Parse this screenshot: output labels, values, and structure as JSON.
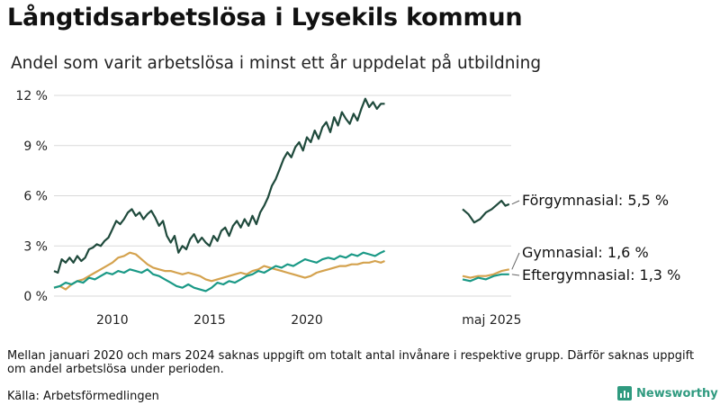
{
  "header": {
    "title": "Långtidsarbetslösa i Lysekils kommun",
    "subtitle": "Andel som varit arbetslösa i minst ett år uppdelat på utbildning"
  },
  "footer": {
    "note": "Mellan januari 2020 och mars 2024 saknas uppgift om totalt antal invånare i respektive grupp. Därför saknas uppgift om andel arbetslösa under perioden.",
    "source": "Källa: Arbetsförmedlingen",
    "brand": "Newsworthy"
  },
  "colors": {
    "forgymnasial": "#1f4a3c",
    "gymnasial": "#d4a24e",
    "eftergymnasial": "#1a9986",
    "grid": "#d9d9d9",
    "brand": "#2f9a7f"
  },
  "chart_data": {
    "type": "line",
    "ylim": [
      0,
      12
    ],
    "y_ticks": [
      0,
      3,
      6,
      9,
      12
    ],
    "y_tick_labels": [
      "0 %",
      "3 %",
      "6 %",
      "9 %",
      "12 %"
    ],
    "x_tick_labels": [
      "2010",
      "2015",
      "2020",
      "maj 2025"
    ],
    "grid": true,
    "series": [
      {
        "name": "Förgymnasial",
        "end_label": "Förgymnasial: 5,5 %",
        "color_key": "forgymnasial",
        "segments": [
          [
            [
              2008.0,
              1.5
            ],
            [
              2008.2,
              1.4
            ],
            [
              2008.4,
              2.2
            ],
            [
              2008.6,
              2.0
            ],
            [
              2008.8,
              2.3
            ],
            [
              2009.0,
              2.0
            ],
            [
              2009.2,
              2.4
            ],
            [
              2009.4,
              2.1
            ],
            [
              2009.6,
              2.3
            ],
            [
              2009.8,
              2.8
            ],
            [
              2010.0,
              2.9
            ],
            [
              2010.2,
              3.1
            ],
            [
              2010.4,
              3.0
            ],
            [
              2010.6,
              3.3
            ],
            [
              2010.8,
              3.5
            ],
            [
              2011.0,
              4.0
            ],
            [
              2011.2,
              4.5
            ],
            [
              2011.4,
              4.3
            ],
            [
              2011.6,
              4.6
            ],
            [
              2011.8,
              5.0
            ],
            [
              2012.0,
              5.2
            ],
            [
              2012.2,
              4.8
            ],
            [
              2012.4,
              5.0
            ],
            [
              2012.6,
              4.6
            ],
            [
              2012.8,
              4.9
            ],
            [
              2013.0,
              5.1
            ],
            [
              2013.2,
              4.7
            ],
            [
              2013.4,
              4.2
            ],
            [
              2013.6,
              4.5
            ],
            [
              2013.8,
              3.6
            ],
            [
              2014.0,
              3.2
            ],
            [
              2014.2,
              3.6
            ],
            [
              2014.4,
              2.6
            ],
            [
              2014.6,
              3.0
            ],
            [
              2014.8,
              2.8
            ],
            [
              2015.0,
              3.4
            ],
            [
              2015.2,
              3.7
            ],
            [
              2015.4,
              3.2
            ],
            [
              2015.6,
              3.5
            ],
            [
              2015.8,
              3.2
            ],
            [
              2016.0,
              3.0
            ],
            [
              2016.2,
              3.6
            ],
            [
              2016.4,
              3.3
            ],
            [
              2016.6,
              3.9
            ],
            [
              2016.8,
              4.1
            ],
            [
              2017.0,
              3.6
            ],
            [
              2017.2,
              4.2
            ],
            [
              2017.4,
              4.5
            ],
            [
              2017.6,
              4.1
            ],
            [
              2017.8,
              4.6
            ],
            [
              2018.0,
              4.2
            ],
            [
              2018.2,
              4.8
            ],
            [
              2018.4,
              4.3
            ],
            [
              2018.6,
              5.0
            ],
            [
              2018.8,
              5.4
            ],
            [
              2019.0,
              5.9
            ],
            [
              2019.2,
              6.6
            ],
            [
              2019.4,
              7.0
            ],
            [
              2019.6,
              7.6
            ],
            [
              2019.8,
              8.2
            ],
            [
              2020.0,
              8.6
            ],
            [
              2020.2,
              8.3
            ],
            [
              2020.4,
              8.9
            ],
            [
              2020.6,
              9.2
            ],
            [
              2020.8,
              8.7
            ],
            [
              2021.0,
              9.5
            ],
            [
              2021.2,
              9.2
            ],
            [
              2021.4,
              9.9
            ],
            [
              2021.6,
              9.4
            ],
            [
              2021.8,
              10.1
            ],
            [
              2022.0,
              10.4
            ],
            [
              2022.2,
              9.8
            ],
            [
              2022.4,
              10.7
            ],
            [
              2022.6,
              10.2
            ],
            [
              2022.8,
              11.0
            ],
            [
              2023.0,
              10.6
            ],
            [
              2023.2,
              10.3
            ],
            [
              2023.4,
              10.9
            ],
            [
              2023.6,
              10.5
            ],
            [
              2023.8,
              11.2
            ],
            [
              2024.0,
              11.8
            ],
            [
              2024.2,
              11.3
            ],
            [
              2024.4,
              11.6
            ],
            [
              2024.6,
              11.2
            ],
            [
              2024.8,
              11.5
            ],
            [
              2025.0,
              11.5
            ]
          ],
          [
            [
              2029.0,
              5.2
            ],
            [
              2029.3,
              4.9
            ],
            [
              2029.6,
              4.4
            ],
            [
              2029.9,
              4.6
            ],
            [
              2030.2,
              5.0
            ],
            [
              2030.5,
              5.2
            ],
            [
              2030.8,
              5.5
            ],
            [
              2031.0,
              5.7
            ],
            [
              2031.2,
              5.4
            ],
            [
              2031.4,
              5.5
            ]
          ]
        ]
      },
      {
        "name": "Gymnasial",
        "end_label": "Gymnasial: 1,6 %",
        "color_key": "gymnasial",
        "segments": [
          [
            [
              2008.0,
              0.5
            ],
            [
              2008.3,
              0.6
            ],
            [
              2008.6,
              0.4
            ],
            [
              2008.9,
              0.7
            ],
            [
              2009.2,
              0.9
            ],
            [
              2009.5,
              1.0
            ],
            [
              2009.8,
              1.2
            ],
            [
              2010.1,
              1.4
            ],
            [
              2010.4,
              1.6
            ],
            [
              2010.7,
              1.8
            ],
            [
              2011.0,
              2.0
            ],
            [
              2011.3,
              2.3
            ],
            [
              2011.6,
              2.4
            ],
            [
              2011.9,
              2.6
            ],
            [
              2012.2,
              2.5
            ],
            [
              2012.5,
              2.2
            ],
            [
              2012.8,
              1.9
            ],
            [
              2013.1,
              1.7
            ],
            [
              2013.4,
              1.6
            ],
            [
              2013.7,
              1.5
            ],
            [
              2014.0,
              1.5
            ],
            [
              2014.3,
              1.4
            ],
            [
              2014.6,
              1.3
            ],
            [
              2014.9,
              1.4
            ],
            [
              2015.2,
              1.3
            ],
            [
              2015.5,
              1.2
            ],
            [
              2015.8,
              1.0
            ],
            [
              2016.1,
              0.9
            ],
            [
              2016.4,
              1.0
            ],
            [
              2016.7,
              1.1
            ],
            [
              2017.0,
              1.2
            ],
            [
              2017.3,
              1.3
            ],
            [
              2017.6,
              1.4
            ],
            [
              2017.9,
              1.3
            ],
            [
              2018.2,
              1.5
            ],
            [
              2018.5,
              1.6
            ],
            [
              2018.8,
              1.8
            ],
            [
              2019.1,
              1.7
            ],
            [
              2019.4,
              1.6
            ],
            [
              2019.7,
              1.5
            ],
            [
              2020.0,
              1.4
            ],
            [
              2020.3,
              1.3
            ],
            [
              2020.6,
              1.2
            ],
            [
              2020.9,
              1.1
            ],
            [
              2021.2,
              1.2
            ],
            [
              2021.5,
              1.4
            ],
            [
              2021.8,
              1.5
            ],
            [
              2022.1,
              1.6
            ],
            [
              2022.4,
              1.7
            ],
            [
              2022.7,
              1.8
            ],
            [
              2023.0,
              1.8
            ],
            [
              2023.3,
              1.9
            ],
            [
              2023.6,
              1.9
            ],
            [
              2023.9,
              2.0
            ],
            [
              2024.2,
              2.0
            ],
            [
              2024.5,
              2.1
            ],
            [
              2024.8,
              2.0
            ],
            [
              2025.0,
              2.1
            ]
          ],
          [
            [
              2029.0,
              1.2
            ],
            [
              2029.4,
              1.1
            ],
            [
              2029.8,
              1.2
            ],
            [
              2030.2,
              1.2
            ],
            [
              2030.6,
              1.3
            ],
            [
              2031.0,
              1.5
            ],
            [
              2031.4,
              1.6
            ]
          ]
        ]
      },
      {
        "name": "Eftergymnasial",
        "end_label": "Eftergymnasial: 1,3 %",
        "color_key": "eftergymnasial",
        "segments": [
          [
            [
              2008.0,
              0.5
            ],
            [
              2008.3,
              0.6
            ],
            [
              2008.6,
              0.8
            ],
            [
              2008.9,
              0.7
            ],
            [
              2009.2,
              0.9
            ],
            [
              2009.5,
              0.8
            ],
            [
              2009.8,
              1.1
            ],
            [
              2010.1,
              1.0
            ],
            [
              2010.4,
              1.2
            ],
            [
              2010.7,
              1.4
            ],
            [
              2011.0,
              1.3
            ],
            [
              2011.3,
              1.5
            ],
            [
              2011.6,
              1.4
            ],
            [
              2011.9,
              1.6
            ],
            [
              2012.2,
              1.5
            ],
            [
              2012.5,
              1.4
            ],
            [
              2012.8,
              1.6
            ],
            [
              2013.1,
              1.3
            ],
            [
              2013.4,
              1.2
            ],
            [
              2013.7,
              1.0
            ],
            [
              2014.0,
              0.8
            ],
            [
              2014.3,
              0.6
            ],
            [
              2014.6,
              0.5
            ],
            [
              2014.9,
              0.7
            ],
            [
              2015.2,
              0.5
            ],
            [
              2015.5,
              0.4
            ],
            [
              2015.8,
              0.3
            ],
            [
              2016.1,
              0.5
            ],
            [
              2016.4,
              0.8
            ],
            [
              2016.7,
              0.7
            ],
            [
              2017.0,
              0.9
            ],
            [
              2017.3,
              0.8
            ],
            [
              2017.6,
              1.0
            ],
            [
              2017.9,
              1.2
            ],
            [
              2018.2,
              1.3
            ],
            [
              2018.5,
              1.5
            ],
            [
              2018.8,
              1.4
            ],
            [
              2019.1,
              1.6
            ],
            [
              2019.4,
              1.8
            ],
            [
              2019.7,
              1.7
            ],
            [
              2020.0,
              1.9
            ],
            [
              2020.3,
              1.8
            ],
            [
              2020.6,
              2.0
            ],
            [
              2020.9,
              2.2
            ],
            [
              2021.2,
              2.1
            ],
            [
              2021.5,
              2.0
            ],
            [
              2021.8,
              2.2
            ],
            [
              2022.1,
              2.3
            ],
            [
              2022.4,
              2.2
            ],
            [
              2022.7,
              2.4
            ],
            [
              2023.0,
              2.3
            ],
            [
              2023.3,
              2.5
            ],
            [
              2023.6,
              2.4
            ],
            [
              2023.9,
              2.6
            ],
            [
              2024.2,
              2.5
            ],
            [
              2024.5,
              2.4
            ],
            [
              2024.8,
              2.6
            ],
            [
              2025.0,
              2.7
            ]
          ],
          [
            [
              2029.0,
              1.0
            ],
            [
              2029.4,
              0.9
            ],
            [
              2029.8,
              1.1
            ],
            [
              2030.2,
              1.0
            ],
            [
              2030.6,
              1.2
            ],
            [
              2031.0,
              1.3
            ],
            [
              2031.4,
              1.3
            ]
          ]
        ]
      }
    ],
    "x_tick_values": [
      2011,
      2016,
      2021,
      2030.5
    ]
  }
}
